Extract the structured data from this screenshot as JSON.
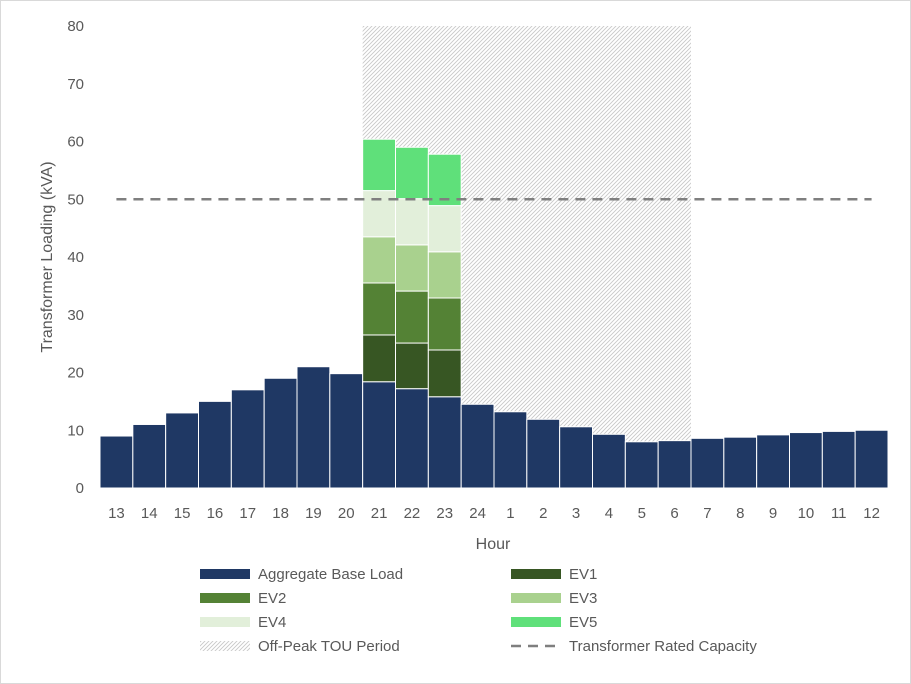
{
  "chart_data": {
    "type": "bar",
    "stacked": true,
    "xlabel": "Hour",
    "ylabel": "Transformer Loading (kVA)",
    "ylim": [
      0,
      80
    ],
    "yticks": [
      0,
      10,
      20,
      30,
      40,
      50,
      60,
      70,
      80
    ],
    "grid": false,
    "legend_position": "bottom",
    "categories": [
      "13",
      "14",
      "15",
      "16",
      "17",
      "18",
      "19",
      "20",
      "21",
      "22",
      "23",
      "24",
      "1",
      "2",
      "3",
      "4",
      "5",
      "6",
      "7",
      "8",
      "9",
      "10",
      "11",
      "12"
    ],
    "series": [
      {
        "name": "Aggregate Base Load",
        "color": "#1f3864",
        "values": [
          9,
          11,
          13,
          15,
          17,
          19,
          21,
          19.8,
          18.4,
          17.2,
          15.8,
          14.5,
          13.2,
          11.9,
          10.6,
          9.3,
          8,
          8.2,
          8.6,
          8.8,
          9.2,
          9.6,
          9.8,
          10
        ]
      },
      {
        "name": "EV1",
        "color": "#375623",
        "values": [
          0,
          0,
          0,
          0,
          0,
          0,
          0,
          0,
          8.1,
          7.9,
          8.1,
          0,
          0,
          0,
          0,
          0,
          0,
          0,
          0,
          0,
          0,
          0,
          0,
          0
        ]
      },
      {
        "name": "EV2",
        "color": "#548235",
        "values": [
          0,
          0,
          0,
          0,
          0,
          0,
          0,
          0,
          9.0,
          9.0,
          9.0,
          0,
          0,
          0,
          0,
          0,
          0,
          0,
          0,
          0,
          0,
          0,
          0,
          0
        ]
      },
      {
        "name": "EV3",
        "color": "#a9d18e",
        "values": [
          0,
          0,
          0,
          0,
          0,
          0,
          0,
          0,
          8.0,
          8.0,
          8.0,
          0,
          0,
          0,
          0,
          0,
          0,
          0,
          0,
          0,
          0,
          0,
          0,
          0
        ]
      },
      {
        "name": "EV4",
        "color": "#e2efda",
        "values": [
          0,
          0,
          0,
          0,
          0,
          0,
          0,
          0,
          8.0,
          8.0,
          8.0,
          0,
          0,
          0,
          0,
          0,
          0,
          0,
          0,
          0,
          0,
          0,
          0,
          0
        ]
      },
      {
        "name": "EV5",
        "color": "#5fe07a",
        "values": [
          0,
          0,
          0,
          0,
          0,
          0,
          0,
          0,
          8.9,
          8.9,
          8.9,
          0,
          0,
          0,
          0,
          0,
          0,
          0,
          0,
          0,
          0,
          0,
          0,
          0
        ]
      }
    ],
    "off_peak_period": {
      "name": "Off-Peak TOU Period",
      "from": "21",
      "to": "6",
      "level": 80
    },
    "capacity_line": {
      "name": "Transformer Rated Capacity",
      "value": 50,
      "color": "#7f7f7f"
    },
    "legend": [
      {
        "label": "Aggregate Base Load",
        "kind": "box",
        "color": "#1f3864"
      },
      {
        "label": "EV1",
        "kind": "box",
        "color": "#375623"
      },
      {
        "label": "EV2",
        "kind": "box",
        "color": "#548235"
      },
      {
        "label": "EV3",
        "kind": "box",
        "color": "#a9d18e"
      },
      {
        "label": "EV4",
        "kind": "box",
        "color": "#e2efda"
      },
      {
        "label": "EV5",
        "kind": "box",
        "color": "#5fe07a"
      },
      {
        "label": "Off-Peak TOU Period",
        "kind": "hatch",
        "color": "#bfbfbf"
      },
      {
        "label": "Transformer Rated Capacity",
        "kind": "dash",
        "color": "#7f7f7f"
      }
    ]
  }
}
